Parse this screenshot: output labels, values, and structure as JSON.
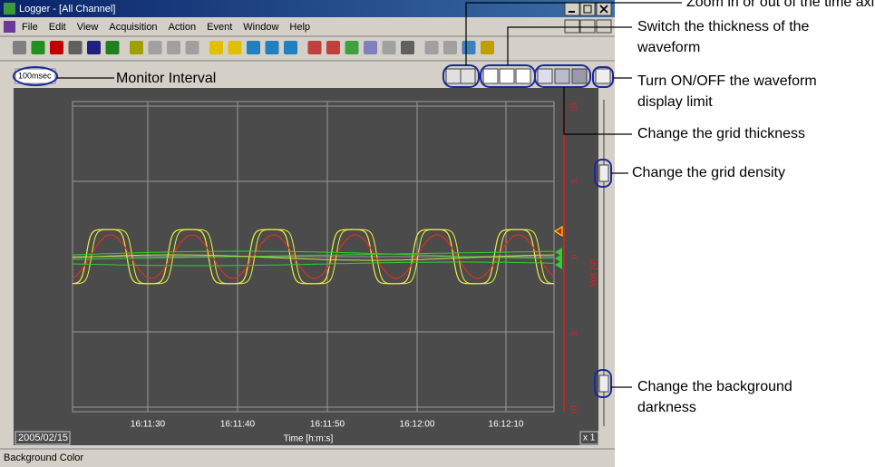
{
  "window": {
    "title": "Logger - [All Channel]",
    "menu": [
      "File",
      "Edit",
      "View",
      "Acquisition",
      "Action",
      "Event",
      "Window",
      "Help"
    ],
    "monitor_interval": "100msec",
    "time_ticks": [
      "16:11:30",
      "16:11:40",
      "16:11:50",
      "16:12:00",
      "16:12:10"
    ],
    "x_axis_label": "Time [h:m:s]",
    "y_ticks": [
      "10",
      "5",
      "0",
      "-5",
      "-10"
    ],
    "y_axis_label": "Volt [V]",
    "date": "2005/02/15",
    "scale": "x 1",
    "status": "Background Color"
  },
  "annotations": {
    "monitor_interval": "Monitor Interval",
    "zoom": [
      "Zoom in or out of the time axis"
    ],
    "thickness": [
      "Switch the thickness of the",
      "waveform"
    ],
    "limit": [
      "Turn ON/OFF the waveform",
      "display limit"
    ],
    "grid_thickness": [
      "Change the grid thickness"
    ],
    "grid_density": [
      "Change the grid density"
    ],
    "background": [
      "Change the background",
      "darkness"
    ]
  }
}
